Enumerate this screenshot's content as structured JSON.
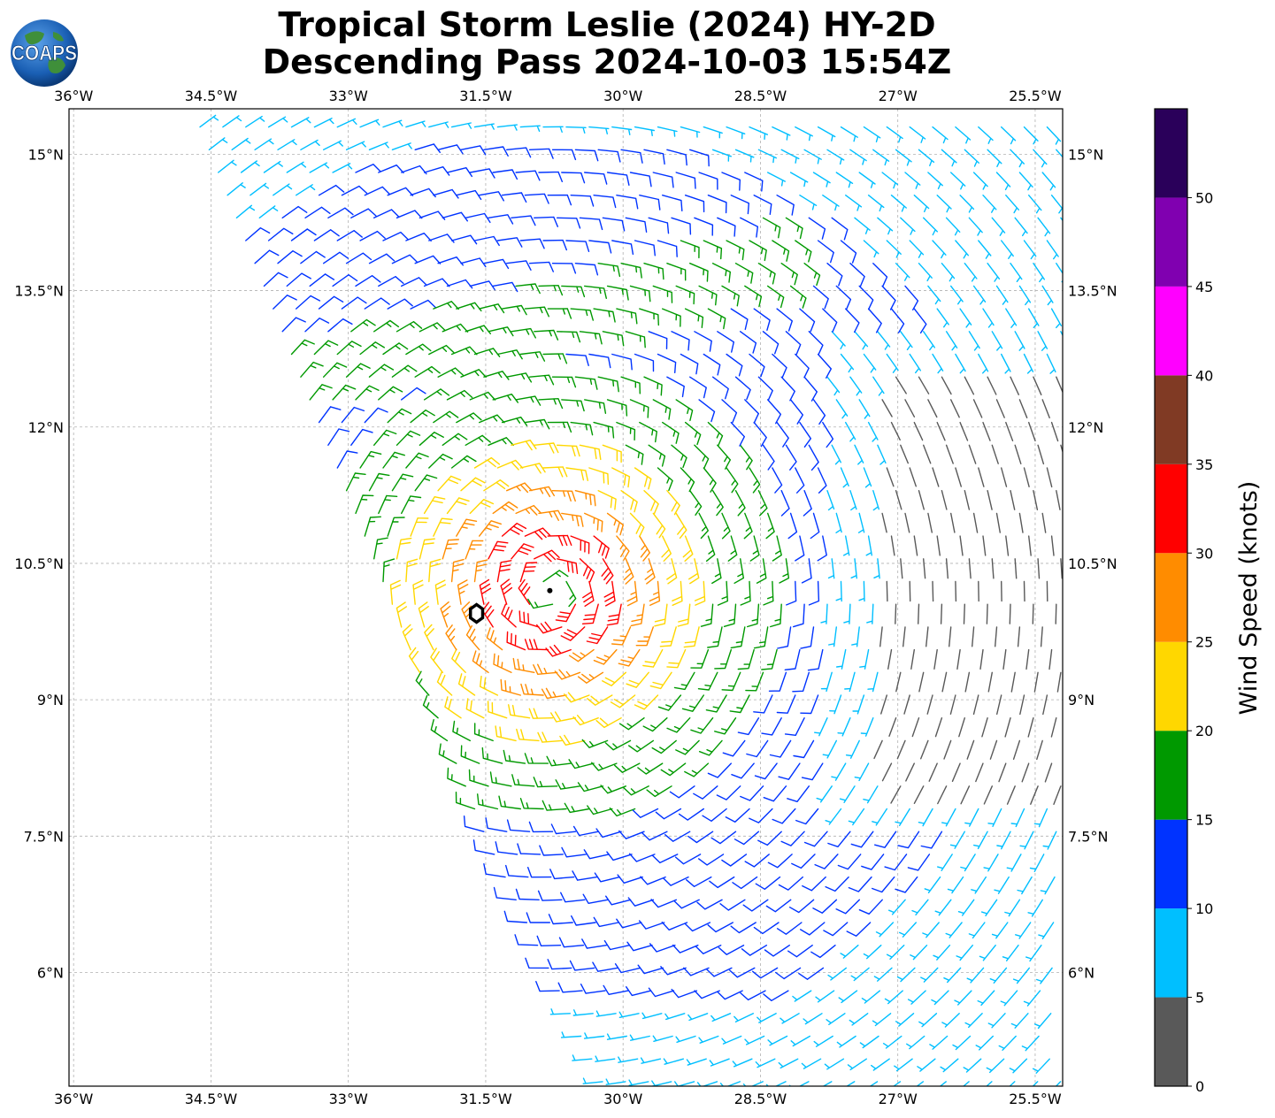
{
  "title": {
    "line1": "Tropical Storm Leslie (2024) HY-2D",
    "line2": "Descending Pass 2024-10-03 15:54Z"
  },
  "logo": {
    "text": "COAPS",
    "icon": "globe-logo-icon"
  },
  "map": {
    "lon_range": [
      -36.05,
      -25.2
    ],
    "lat_range": [
      4.75,
      15.5
    ],
    "grid": true,
    "lon_ticks": [
      "36°W",
      "34.5°W",
      "33°W",
      "31.5°W",
      "30°W",
      "28.5°W",
      "27°W",
      "25.5°W"
    ],
    "lon_tick_values": [
      -36,
      -34.5,
      -33,
      -31.5,
      -30,
      -28.5,
      -27,
      -25.5
    ],
    "lat_ticks": [
      "15°N",
      "13.5°N",
      "12°N",
      "10.5°N",
      "9°N",
      "7.5°N",
      "6°N"
    ],
    "lat_tick_values": [
      15,
      13.5,
      12,
      10.5,
      9,
      7.5,
      6
    ],
    "storm_center": {
      "lon": -30.8,
      "lat": 10.2
    },
    "storm_marker": {
      "lon": -31.6,
      "lat": 9.95
    },
    "swath": {
      "west_edge": [
        [
          -34.7,
          15.5
        ],
        [
          -31.5,
          7.5
        ],
        [
          -30.2,
          4.75
        ]
      ],
      "east_edge": [
        [
          -25.2,
          15.5
        ],
        [
          -25.2,
          4.75
        ]
      ]
    }
  },
  "colorbar": {
    "label": "Wind Speed (knots)",
    "ticks": [
      "0",
      "5",
      "10",
      "15",
      "20",
      "25",
      "30",
      "35",
      "40",
      "45",
      "50"
    ],
    "bins": [
      {
        "min": 0,
        "max": 5,
        "color": "#595959"
      },
      {
        "min": 5,
        "max": 10,
        "color": "#00bfff"
      },
      {
        "min": 10,
        "max": 15,
        "color": "#0033ff"
      },
      {
        "min": 15,
        "max": 20,
        "color": "#009900"
      },
      {
        "min": 20,
        "max": 25,
        "color": "#ffd700"
      },
      {
        "min": 25,
        "max": 30,
        "color": "#ff8c00"
      },
      {
        "min": 30,
        "max": 35,
        "color": "#ff0000"
      },
      {
        "min": 35,
        "max": 40,
        "color": "#803a24"
      },
      {
        "min": 40,
        "max": 45,
        "color": "#ff00ff"
      },
      {
        "min": 45,
        "max": 50,
        "color": "#8000b0"
      },
      {
        "min": 50,
        "max": 55,
        "color": "#2a005a"
      }
    ]
  }
}
